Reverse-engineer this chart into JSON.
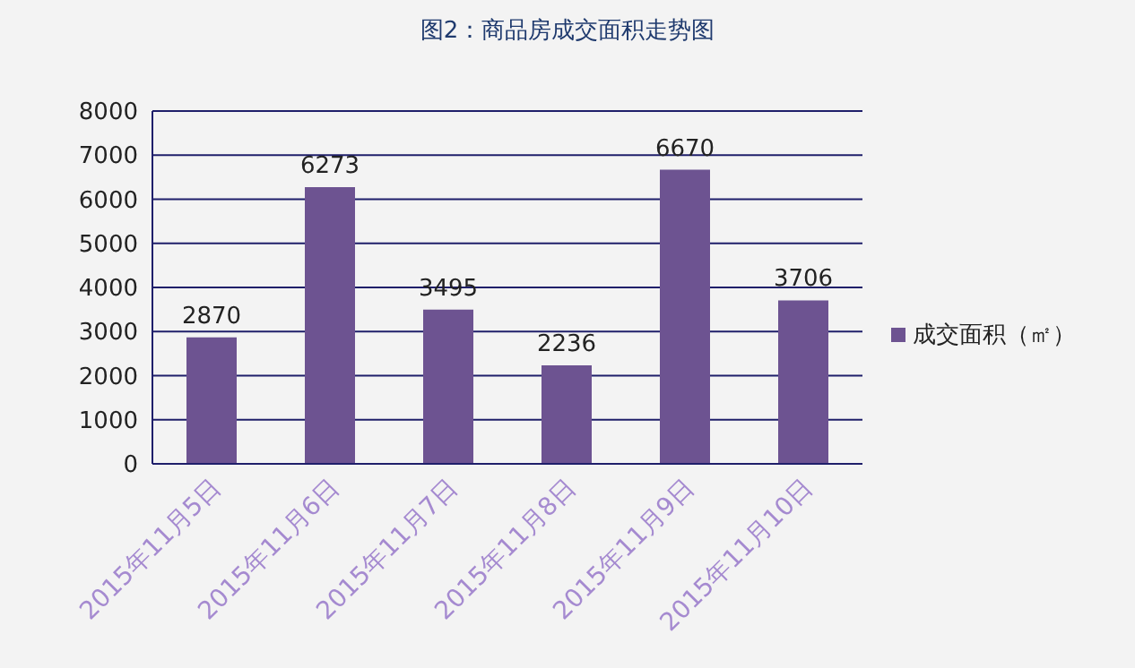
{
  "chart_data": {
    "type": "bar",
    "title": "图2：商品房成交面积走势图",
    "categories": [
      "2015年11月5日",
      "2015年11月6日",
      "2015年11月7日",
      "2015年11月8日",
      "2015年11月9日",
      "2015年11月10日"
    ],
    "series": [
      {
        "name": "成交面积（㎡）",
        "color": "#6d5391",
        "values": [
          2870,
          6273,
          3495,
          2236,
          6670,
          3706
        ]
      }
    ],
    "ylim": [
      0,
      8000
    ],
    "yticks": [
      0,
      1000,
      2000,
      3000,
      4000,
      5000,
      6000,
      7000,
      8000
    ],
    "grid": "y",
    "legend": "right",
    "data_labels": true
  }
}
